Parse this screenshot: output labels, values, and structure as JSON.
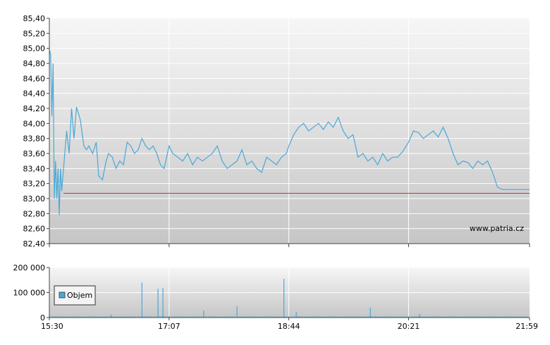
{
  "chart_data": [
    {
      "type": "line",
      "watermark": "www.patria.cz",
      "ylim": [
        82.4,
        85.4
      ],
      "y_ticks": [
        "85,40",
        "85,20",
        "85,00",
        "84,80",
        "84,60",
        "84,40",
        "84,20",
        "84,00",
        "83,80",
        "83,60",
        "83,40",
        "83,20",
        "83,00",
        "82,80",
        "82,60",
        "82,40"
      ],
      "x_ticks": [
        "15:30",
        "17:07",
        "18:44",
        "20:21",
        "21:59"
      ],
      "grid": true,
      "reference_line": {
        "value": 83.07,
        "color": "#cc3333"
      },
      "line_color": "#4aa8d8",
      "series": [
        {
          "x": [
            "15:30",
            "15:31",
            "15:32",
            "15:33",
            "15:34",
            "15:35",
            "15:36",
            "15:37",
            "15:38",
            "15:39",
            "15:40",
            "15:42",
            "15:44",
            "15:46",
            "15:48",
            "15:50",
            "15:52",
            "15:55",
            "15:58",
            "16:00",
            "16:02",
            "16:05",
            "16:08",
            "16:10",
            "16:13",
            "16:16",
            "16:18",
            "16:21",
            "16:24",
            "16:27",
            "16:30",
            "16:33",
            "16:36",
            "16:39",
            "16:42",
            "16:45",
            "16:48",
            "16:51",
            "16:54",
            "16:57",
            "17:00",
            "17:03",
            "17:07",
            "17:10",
            "17:14",
            "17:18",
            "17:22",
            "17:26",
            "17:30",
            "17:34",
            "17:38",
            "17:42",
            "17:46",
            "17:50",
            "17:54",
            "17:58",
            "18:02",
            "18:06",
            "18:10",
            "18:14",
            "18:18",
            "18:22",
            "18:26",
            "18:30",
            "18:34",
            "18:38",
            "18:42",
            "18:44",
            "18:48",
            "18:52",
            "18:56",
            "19:00",
            "19:04",
            "19:08",
            "19:12",
            "19:16",
            "19:20",
            "19:24",
            "19:28",
            "19:32",
            "19:36",
            "19:40",
            "19:44",
            "19:48",
            "19:52",
            "19:56",
            "20:00",
            "20:04",
            "20:08",
            "20:12",
            "20:16",
            "20:21",
            "20:25",
            "20:29",
            "20:33",
            "20:37",
            "20:41",
            "20:45",
            "20:49",
            "20:53",
            "20:57",
            "21:01",
            "21:05",
            "21:09",
            "21:13",
            "21:17",
            "21:21",
            "21:25",
            "21:29",
            "21:33",
            "21:37",
            "21:41",
            "21:45",
            "21:49",
            "21:53",
            "21:56",
            "21:59"
          ],
          "values": [
            84.98,
            84.92,
            84.1,
            84.8,
            83.0,
            83.5,
            83.0,
            83.4,
            82.78,
            83.4,
            83.1,
            83.5,
            83.9,
            83.6,
            84.2,
            83.8,
            84.22,
            84.05,
            83.7,
            83.65,
            83.7,
            83.6,
            83.75,
            83.3,
            83.25,
            83.5,
            83.6,
            83.55,
            83.4,
            83.5,
            83.45,
            83.75,
            83.7,
            83.6,
            83.65,
            83.8,
            83.7,
            83.65,
            83.7,
            83.6,
            83.45,
            83.4,
            83.7,
            83.6,
            83.55,
            83.5,
            83.6,
            83.45,
            83.55,
            83.5,
            83.55,
            83.6,
            83.7,
            83.5,
            83.4,
            83.45,
            83.5,
            83.65,
            83.45,
            83.5,
            83.4,
            83.35,
            83.55,
            83.5,
            83.45,
            83.55,
            83.6,
            83.7,
            83.85,
            83.95,
            84.0,
            83.9,
            83.95,
            84.0,
            83.92,
            84.02,
            83.95,
            84.08,
            83.9,
            83.8,
            83.85,
            83.55,
            83.6,
            83.5,
            83.55,
            83.45,
            83.6,
            83.5,
            83.55,
            83.55,
            83.62,
            83.75,
            83.9,
            83.88,
            83.8,
            83.85,
            83.9,
            83.82,
            83.95,
            83.8,
            83.6,
            83.45,
            83.5,
            83.48,
            83.4,
            83.5,
            83.45,
            83.5,
            83.35,
            83.15,
            83.12,
            83.12,
            83.12,
            83.12,
            83.12,
            83.12,
            83.12
          ]
        }
      ]
    },
    {
      "type": "bar",
      "ylim": [
        0,
        200000
      ],
      "y_ticks": [
        "200 000",
        "100 000",
        "0"
      ],
      "x_ticks": [
        "15:30",
        "17:07",
        "18:44",
        "20:21",
        "21:59"
      ],
      "legend": {
        "label": "Objem",
        "position": "left"
      },
      "bar_color": "#4aa8d8",
      "spikes": [
        {
          "x": "15:30",
          "value": 10000
        },
        {
          "x": "16:20",
          "value": 12000
        },
        {
          "x": "16:45",
          "value": 140000
        },
        {
          "x": "16:58",
          "value": 115000
        },
        {
          "x": "17:02",
          "value": 118000
        },
        {
          "x": "17:35",
          "value": 28000
        },
        {
          "x": "18:02",
          "value": 45000
        },
        {
          "x": "18:40",
          "value": 155000
        },
        {
          "x": "18:50",
          "value": 22000
        },
        {
          "x": "19:50",
          "value": 40000
        },
        {
          "x": "20:30",
          "value": 15000
        }
      ],
      "baseline_value": 6000
    }
  ]
}
